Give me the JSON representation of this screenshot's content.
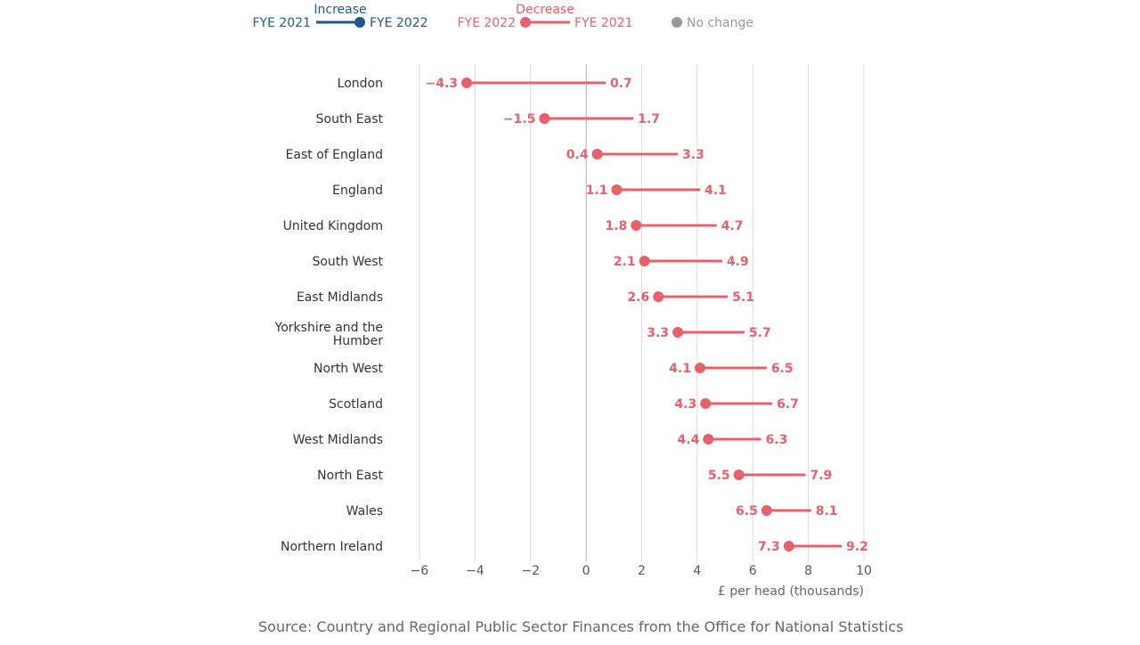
{
  "colors": {
    "increase": "#1f5a8b",
    "decrease": "#e8606a",
    "no_change": "#999999",
    "grid": "#dddddd",
    "zero_line": "#b0b0b0"
  },
  "legend": {
    "increase": {
      "title": "Increase",
      "from": "FYE 2021",
      "to": "FYE 2022"
    },
    "decrease": {
      "title": "Decrease",
      "from": "FYE 2022",
      "to": "FYE 2021"
    },
    "no_change": {
      "label": "No change"
    }
  },
  "chart_data": {
    "type": "dumbbell",
    "categories": [
      "London",
      "South East",
      "East of England",
      "England",
      "United Kingdom",
      "South West",
      "East Midlands",
      "Yorkshire and the Humber",
      "North West",
      "Scotland",
      "West Midlands",
      "North East",
      "Wales",
      "Northern Ireland"
    ],
    "series": [
      {
        "name": "FYE 2021",
        "values": [
          0.7,
          1.7,
          3.3,
          4.1,
          4.7,
          4.9,
          5.1,
          5.7,
          6.5,
          6.7,
          6.3,
          7.9,
          8.1,
          9.2
        ]
      },
      {
        "name": "FYE 2022",
        "values": [
          -4.3,
          -1.5,
          0.4,
          1.1,
          1.8,
          2.1,
          2.6,
          3.3,
          4.1,
          4.3,
          4.4,
          5.5,
          6.5,
          7.3
        ]
      }
    ],
    "value_labels_2021": [
      "0.7",
      "1.7",
      "3.3",
      "4.1",
      "4.7",
      "4.9",
      "5.1",
      "5.7",
      "6.5",
      "6.7",
      "6.3",
      "7.9",
      "8.1",
      "9.2"
    ],
    "value_labels_2022": [
      "−4.3",
      "−1.5",
      "0.4",
      "1.1",
      "1.8",
      "2.1",
      "2.6",
      "3.3",
      "4.1",
      "4.3",
      "4.4",
      "5.5",
      "6.5",
      "7.3"
    ],
    "xlim": [
      -6,
      10
    ],
    "xticks": [
      -6,
      -4,
      -2,
      0,
      2,
      4,
      6,
      8,
      10
    ],
    "xtick_labels": [
      "−6",
      "−4",
      "−2",
      "0",
      "2",
      "4",
      "6",
      "8",
      "10"
    ],
    "xlabel": "£ per head (thousands)",
    "grid": true
  },
  "source": "Source: Country and Regional Public Sector Finances from the Office for National Statistics"
}
